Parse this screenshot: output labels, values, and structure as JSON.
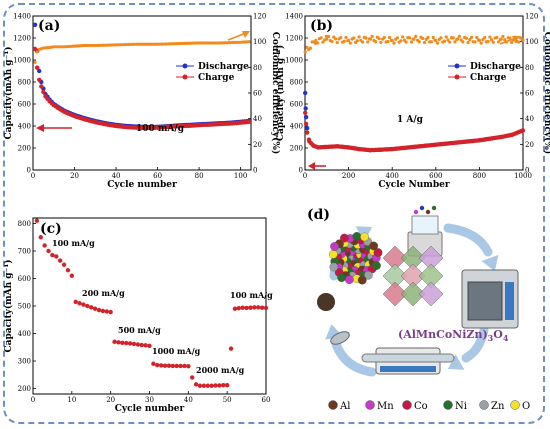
{
  "chart_data": [
    {
      "panel": "(a)",
      "type": "scatter",
      "xlabel": "Cycle number",
      "ylabel": "Capacity(mAh g⁻¹)",
      "ylabel2": "Coulombic efficiency(%)",
      "xlim": [
        0,
        105
      ],
      "ylim": [
        0,
        1400
      ],
      "y2lim": [
        0,
        120
      ],
      "xticks": [
        0,
        20,
        40,
        60,
        80,
        100
      ],
      "yticks": [
        0,
        200,
        400,
        600,
        800,
        1000,
        1200,
        1400
      ],
      "y2ticks": [
        0,
        20,
        40,
        60,
        80,
        100,
        120
      ],
      "annotation": "100 mA/g",
      "legend_position": "top-right",
      "series": [
        {
          "name": "Discharge",
          "color": "#2433c8",
          "axis": "left",
          "x": [
            1,
            2,
            3,
            4,
            5,
            6,
            8,
            10,
            12,
            15,
            18,
            20,
            25,
            30,
            35,
            40,
            45,
            50,
            55,
            60,
            65,
            70,
            75,
            80,
            85,
            90,
            95,
            100,
            104
          ],
          "y": [
            1320,
            1080,
            900,
            800,
            740,
            690,
            640,
            600,
            575,
            540,
            515,
            500,
            470,
            445,
            425,
            410,
            400,
            395,
            390,
            392,
            398,
            405,
            410,
            415,
            420,
            425,
            430,
            438,
            445
          ]
        },
        {
          "name": "Charge",
          "color": "#d3232a",
          "axis": "left",
          "x": [
            1,
            2,
            3,
            4,
            5,
            6,
            8,
            10,
            12,
            15,
            18,
            20,
            25,
            30,
            35,
            40,
            45,
            50,
            55,
            60,
            65,
            70,
            75,
            80,
            85,
            90,
            95,
            100,
            104
          ],
          "y": [
            1100,
            930,
            820,
            760,
            710,
            670,
            625,
            590,
            565,
            530,
            505,
            490,
            460,
            435,
            415,
            400,
            390,
            385,
            382,
            385,
            392,
            398,
            402,
            408,
            412,
            418,
            422,
            430,
            438
          ]
        },
        {
          "name": "",
          "color": "#f28a1e",
          "axis": "right",
          "x": [
            1,
            2,
            3,
            5,
            8,
            10,
            15,
            20,
            25,
            30,
            40,
            50,
            60,
            70,
            80,
            90,
            100,
            104
          ],
          "y": [
            84,
            92,
            94,
            95,
            95.5,
            96,
            96,
            96.5,
            97,
            97,
            97.5,
            98,
            98,
            98.5,
            99,
            99,
            99.5,
            100
          ]
        }
      ]
    },
    {
      "panel": "(b)",
      "type": "scatter",
      "xlabel": "Cycle Number",
      "ylabel": "Capacity (mAh g⁻¹)",
      "ylabel2": "Coulombic efficiency(%)",
      "xlim": [
        0,
        1000
      ],
      "ylim": [
        0,
        1400
      ],
      "y2lim": [
        0,
        120
      ],
      "xticks": [
        0,
        200,
        400,
        600,
        800,
        1000
      ],
      "yticks": [
        0,
        200,
        400,
        600,
        800,
        1000,
        1200,
        1400
      ],
      "y2ticks": [
        0,
        20,
        40,
        60,
        80,
        100,
        120
      ],
      "annotation": "1 A/g",
      "legend_position": "top-right",
      "series": [
        {
          "name": "Discharge",
          "color": "#2433c8",
          "axis": "left",
          "x": [
            1,
            3,
            5,
            10
          ],
          "y": [
            700,
            560,
            480,
            380
          ]
        },
        {
          "name": "Charge",
          "color": "#d3232a",
          "axis": "left",
          "x": [
            1,
            5,
            10,
            20,
            40,
            60,
            100,
            150,
            200,
            250,
            300,
            350,
            400,
            450,
            500,
            550,
            600,
            650,
            700,
            750,
            800,
            850,
            900,
            950,
            1000
          ],
          "y": [
            520,
            420,
            340,
            260,
            220,
            205,
            210,
            215,
            205,
            190,
            180,
            185,
            190,
            200,
            210,
            220,
            230,
            240,
            250,
            260,
            270,
            285,
            300,
            320,
            360
          ]
        },
        {
          "name": "",
          "color": "#f28a1e",
          "axis": "right",
          "x": [
            1,
            50,
            100,
            200,
            300,
            400,
            500,
            600,
            700,
            800,
            900,
            1000
          ],
          "y": [
            92,
            101,
            102,
            101,
            102,
            101,
            102,
            101,
            102,
            101,
            102,
            101
          ]
        }
      ]
    },
    {
      "panel": "(c)",
      "type": "scatter",
      "xlabel": "Cycle number",
      "ylabel": "Capacity(mAh g⁻¹)",
      "xlim": [
        0,
        60
      ],
      "ylim": [
        180,
        820
      ],
      "xticks": [
        0,
        10,
        20,
        30,
        40,
        50,
        60
      ],
      "yticks": [
        200,
        300,
        400,
        500,
        600,
        700,
        800
      ],
      "rate_labels": [
        "100 mA/g",
        "200 mA/g",
        "500 mA/g",
        "1000 mA/g",
        "2000 mA/g",
        "100 mA/g"
      ],
      "series": [
        {
          "name": "",
          "color": "#d3232a",
          "x": [
            1,
            2,
            3,
            4,
            5,
            6,
            7,
            8,
            9,
            10,
            11,
            12,
            13,
            14,
            15,
            16,
            17,
            18,
            19,
            20,
            21,
            22,
            23,
            24,
            25,
            26,
            27,
            28,
            29,
            30,
            31,
            32,
            33,
            34,
            35,
            36,
            37,
            38,
            39,
            40,
            41,
            42,
            43,
            44,
            45,
            46,
            47,
            48,
            49,
            50,
            51,
            52,
            53,
            54,
            55,
            56,
            57,
            58,
            59,
            60
          ],
          "y": [
            810,
            750,
            720,
            700,
            685,
            680,
            665,
            650,
            630,
            610,
            515,
            510,
            505,
            500,
            495,
            490,
            485,
            482,
            480,
            478,
            370,
            368,
            366,
            365,
            364,
            362,
            360,
            358,
            357,
            355,
            290,
            285,
            284,
            283,
            283,
            282,
            282,
            282,
            282,
            281,
            240,
            215,
            210,
            210,
            210,
            210,
            211,
            211,
            212,
            212,
            345,
            490,
            492,
            494,
            493,
            494,
            495,
            495,
            494,
            493
          ]
        }
      ]
    }
  ],
  "illustration": {
    "panel": "(d)",
    "formula_main": "(AlMnCoNiZn)",
    "formula_sub3": "3",
    "formula_o": "O",
    "formula_sub4": "4",
    "elements": [
      "Al",
      "Mn",
      "Co",
      "Ni",
      "Zn",
      "O"
    ],
    "element_colors": [
      "#6b3a1f",
      "#c43ac8",
      "#c4174a",
      "#2b6e2b",
      "#9aa0a6",
      "#f2e22a"
    ]
  }
}
